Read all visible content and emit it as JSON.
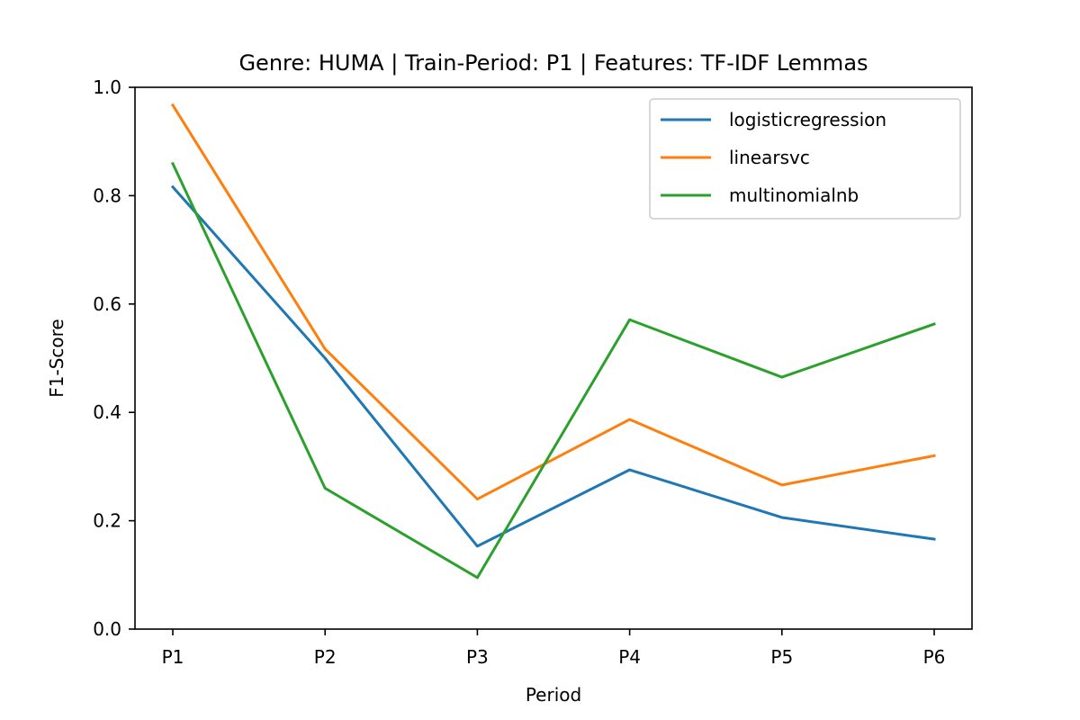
{
  "chart_data": {
    "type": "line",
    "title": "Genre: HUMA | Train-Period: P1 | Features: TF-IDF Lemmas",
    "xlabel": "Period",
    "ylabel": "F1-Score",
    "categories": [
      "P1",
      "P2",
      "P3",
      "P4",
      "P5",
      "P6"
    ],
    "ylim": [
      0.0,
      1.0
    ],
    "yticks": [
      0.0,
      0.2,
      0.4,
      0.6,
      0.8,
      1.0
    ],
    "ytick_labels": [
      "0.0",
      "0.2",
      "0.4",
      "0.6",
      "0.8",
      "1.0"
    ],
    "grid": false,
    "legend_position": "top-right",
    "series": [
      {
        "name": "logisticregression",
        "color": "#1f77b4",
        "values": [
          0.816,
          0.5,
          0.153,
          0.294,
          0.206,
          0.166
        ]
      },
      {
        "name": "linearsvc",
        "color": "#ff7f0e",
        "values": [
          0.967,
          0.517,
          0.24,
          0.387,
          0.266,
          0.32
        ]
      },
      {
        "name": "multinomialnb",
        "color": "#2ca02c",
        "values": [
          0.859,
          0.26,
          0.095,
          0.571,
          0.465,
          0.563
        ]
      }
    ]
  }
}
